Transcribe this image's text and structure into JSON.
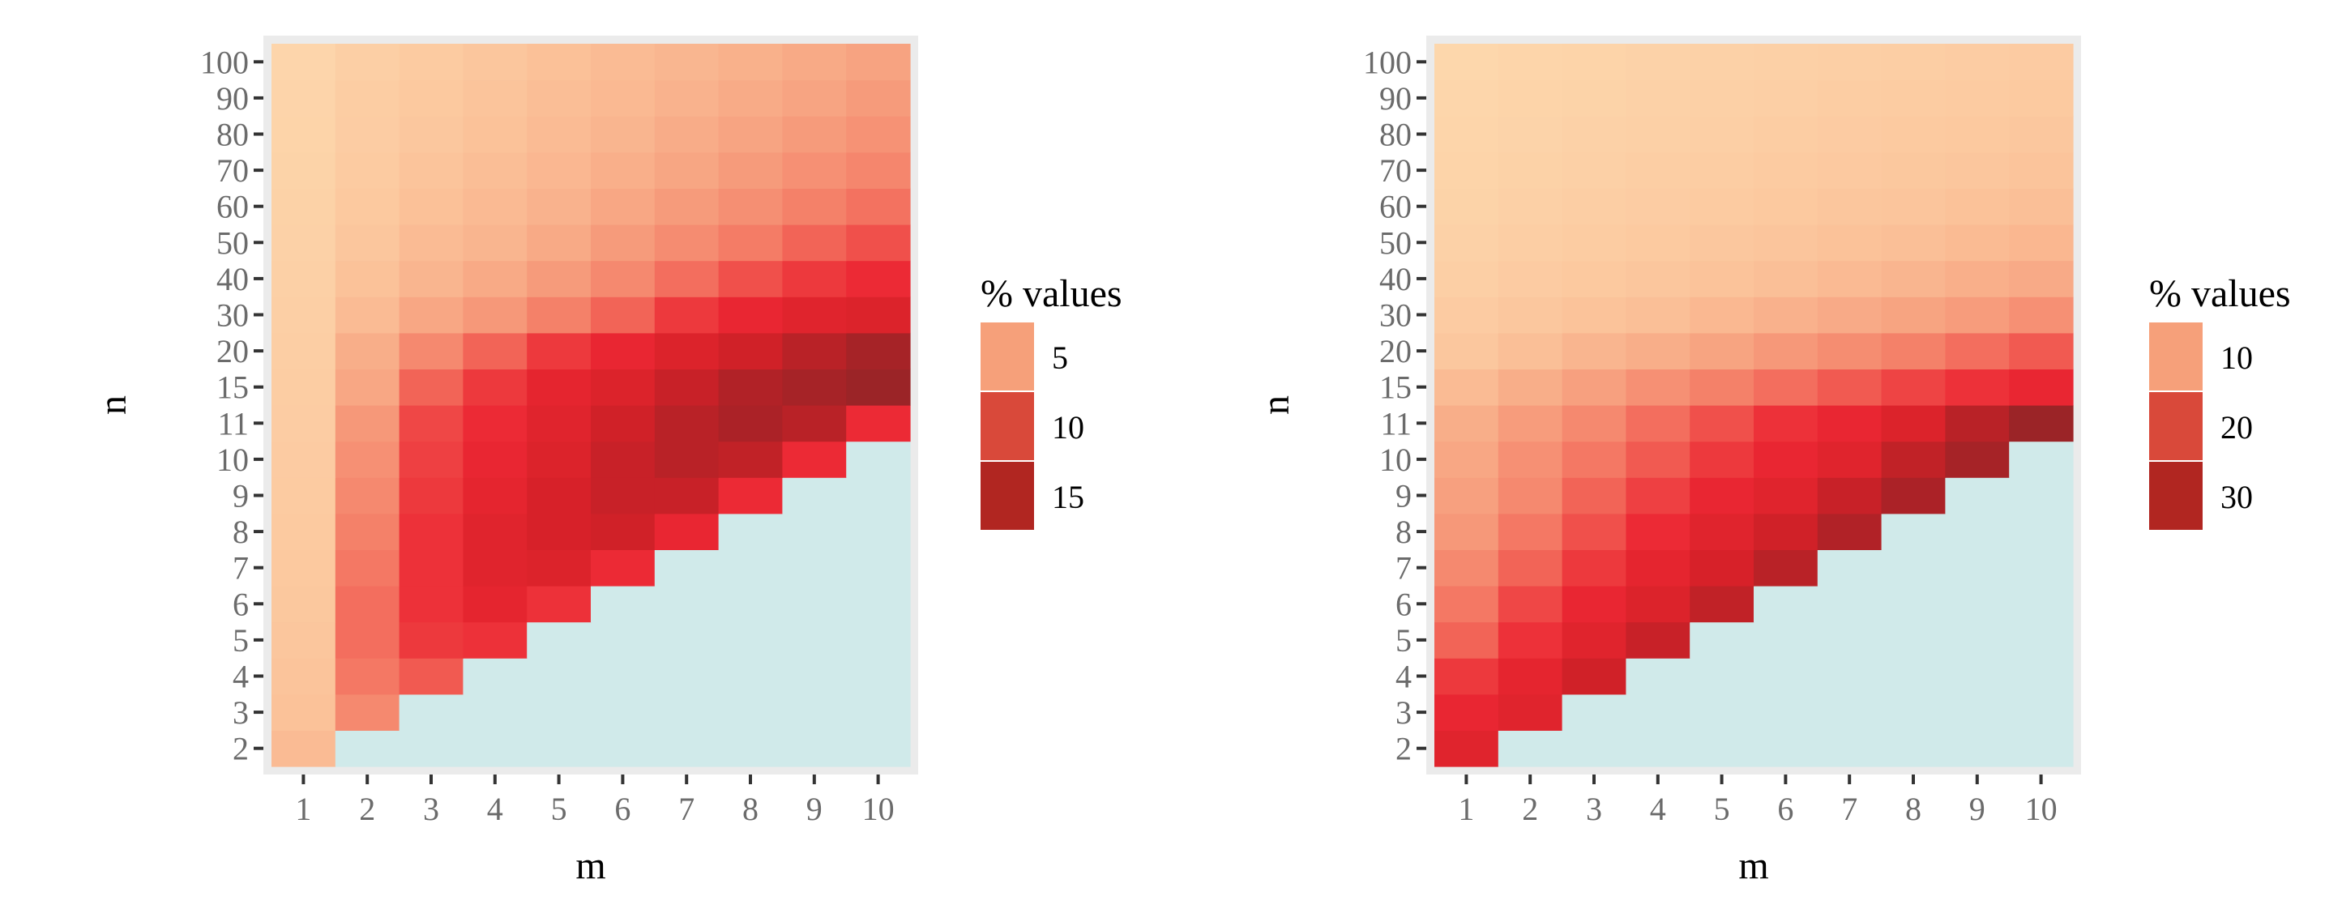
{
  "chart_data": [
    {
      "type": "heatmap",
      "title": "",
      "xlabel": "m",
      "ylabel": "n",
      "x": [
        "1",
        "2",
        "3",
        "4",
        "5",
        "6",
        "7",
        "8",
        "9",
        "10"
      ],
      "y": [
        "2",
        "3",
        "4",
        "5",
        "6",
        "7",
        "8",
        "9",
        "10",
        "11",
        "15",
        "20",
        "30",
        "40",
        "50",
        "60",
        "70",
        "80",
        "90",
        "100"
      ],
      "legend_title": "% values",
      "legend_labels": [
        "5",
        "10",
        "15"
      ],
      "legend_colors": [
        "#f6a07a",
        "#d9493a",
        "#b12621"
      ],
      "na_color": "#d0eaea",
      "values": [
        [
          4.5,
          null,
          null,
          null,
          null,
          null,
          null,
          null,
          null,
          null
        ],
        [
          4.0,
          8.0,
          null,
          null,
          null,
          null,
          null,
          null,
          null,
          null
        ],
        [
          3.8,
          9.0,
          10.5,
          null,
          null,
          null,
          null,
          null,
          null,
          null
        ],
        [
          3.6,
          9.5,
          12.5,
          13.0,
          null,
          null,
          null,
          null,
          null,
          null
        ],
        [
          3.4,
          9.5,
          13.0,
          14.5,
          13.0,
          null,
          null,
          null,
          null,
          null
        ],
        [
          3.3,
          9.0,
          13.0,
          15.0,
          15.5,
          13.5,
          null,
          null,
          null,
          null
        ],
        [
          3.2,
          8.5,
          13.0,
          15.0,
          16.0,
          16.5,
          14.0,
          null,
          null,
          null
        ],
        [
          3.1,
          8.0,
          12.5,
          14.5,
          16.0,
          17.0,
          17.0,
          13.5,
          null,
          null
        ],
        [
          3.0,
          7.5,
          12.0,
          14.0,
          15.5,
          17.0,
          18.0,
          17.5,
          13.5,
          null
        ],
        [
          2.9,
          7.0,
          11.5,
          13.5,
          15.0,
          16.5,
          18.0,
          19.0,
          18.0,
          13.5
        ],
        [
          2.8,
          6.0,
          10.0,
          12.5,
          14.5,
          15.5,
          17.0,
          18.5,
          19.5,
          20.5
        ],
        [
          2.7,
          5.5,
          8.0,
          10.0,
          12.5,
          14.0,
          15.5,
          16.5,
          18.0,
          19.5
        ],
        [
          2.6,
          4.5,
          6.0,
          7.0,
          8.5,
          10.0,
          12.5,
          14.0,
          15.0,
          15.5
        ],
        [
          2.5,
          4.0,
          5.0,
          5.8,
          6.8,
          8.0,
          9.5,
          11.0,
          12.5,
          13.5
        ],
        [
          2.4,
          3.6,
          4.5,
          5.0,
          5.8,
          6.8,
          7.8,
          8.8,
          10.0,
          11.0
        ],
        [
          2.3,
          3.3,
          4.1,
          4.6,
          5.2,
          6.0,
          6.8,
          7.6,
          8.5,
          9.3
        ],
        [
          2.2,
          3.1,
          3.8,
          4.3,
          4.8,
          5.4,
          6.1,
          6.8,
          7.5,
          8.2
        ],
        [
          2.1,
          2.9,
          3.5,
          4.0,
          4.5,
          5.0,
          5.6,
          6.2,
          6.8,
          7.4
        ],
        [
          2.0,
          2.8,
          3.3,
          3.8,
          4.3,
          4.7,
          5.2,
          5.7,
          6.2,
          6.8
        ],
        [
          1.9,
          2.6,
          3.1,
          3.6,
          4.1,
          4.5,
          4.9,
          5.3,
          5.8,
          6.3
        ]
      ],
      "value_range": [
        1.5,
        21
      ]
    },
    {
      "type": "heatmap",
      "title": "",
      "xlabel": "m",
      "ylabel": "n",
      "x": [
        "1",
        "2",
        "3",
        "4",
        "5",
        "6",
        "7",
        "8",
        "9",
        "10"
      ],
      "y": [
        "2",
        "3",
        "4",
        "5",
        "6",
        "7",
        "8",
        "9",
        "10",
        "11",
        "15",
        "20",
        "30",
        "40",
        "50",
        "60",
        "70",
        "80",
        "90",
        "100"
      ],
      "legend_title": "% values",
      "legend_labels": [
        "10",
        "20",
        "30"
      ],
      "legend_colors": [
        "#f6a07a",
        "#d9493a",
        "#b12621"
      ],
      "na_color": "#d0eaea",
      "values": [
        [
          30.0,
          null,
          null,
          null,
          null,
          null,
          null,
          null,
          null,
          null
        ],
        [
          28.0,
          30.0,
          null,
          null,
          null,
          null,
          null,
          null,
          null,
          null
        ],
        [
          25.0,
          29.0,
          33.0,
          null,
          null,
          null,
          null,
          null,
          null,
          null
        ],
        [
          20.0,
          26.0,
          30.0,
          34.0,
          null,
          null,
          null,
          null,
          null,
          null
        ],
        [
          18.0,
          23.0,
          28.0,
          31.0,
          35.0,
          null,
          null,
          null,
          null,
          null
        ],
        [
          16.0,
          20.0,
          25.0,
          29.0,
          32.0,
          36.0,
          null,
          null,
          null,
          null
        ],
        [
          14.0,
          18.0,
          22.0,
          27.0,
          30.0,
          33.0,
          37.0,
          null,
          null,
          null
        ],
        [
          13.0,
          16.0,
          20.0,
          24.0,
          28.0,
          30.0,
          34.0,
          38.0,
          null,
          null
        ],
        [
          12.0,
          15.0,
          18.0,
          21.0,
          25.0,
          28.0,
          30.0,
          35.0,
          39.0,
          null
        ],
        [
          11.0,
          13.5,
          16.0,
          19.0,
          22.0,
          26.0,
          28.0,
          31.0,
          36.0,
          41.0
        ],
        [
          9.0,
          11.0,
          13.0,
          15.0,
          17.0,
          19.0,
          21.0,
          23.5,
          26.0,
          28.0
        ],
        [
          7.0,
          8.5,
          10.0,
          11.0,
          12.5,
          14.0,
          15.5,
          17.0,
          19.0,
          21.0
        ],
        [
          6.0,
          7.0,
          7.8,
          8.5,
          9.5,
          10.5,
          11.5,
          12.5,
          13.5,
          15.0
        ],
        [
          5.2,
          6.0,
          6.6,
          7.2,
          7.8,
          8.5,
          9.2,
          10.0,
          10.8,
          11.5
        ],
        [
          4.8,
          5.4,
          5.9,
          6.4,
          6.9,
          7.4,
          8.0,
          8.5,
          9.1,
          9.7
        ],
        [
          4.4,
          5.0,
          5.4,
          5.8,
          6.2,
          6.6,
          7.1,
          7.5,
          8.0,
          8.5
        ],
        [
          4.1,
          4.6,
          5.0,
          5.4,
          5.7,
          6.1,
          6.5,
          6.8,
          7.2,
          7.6
        ],
        [
          3.9,
          4.3,
          4.7,
          5.0,
          5.3,
          5.6,
          6.0,
          6.3,
          6.6,
          7.0
        ],
        [
          3.7,
          4.1,
          4.4,
          4.7,
          5.0,
          5.3,
          5.6,
          5.9,
          6.1,
          6.4
        ],
        [
          3.5,
          3.9,
          4.2,
          4.5,
          4.8,
          5.0,
          5.3,
          5.5,
          5.8,
          6.0
        ]
      ],
      "value_range": [
        3,
        42
      ]
    }
  ]
}
